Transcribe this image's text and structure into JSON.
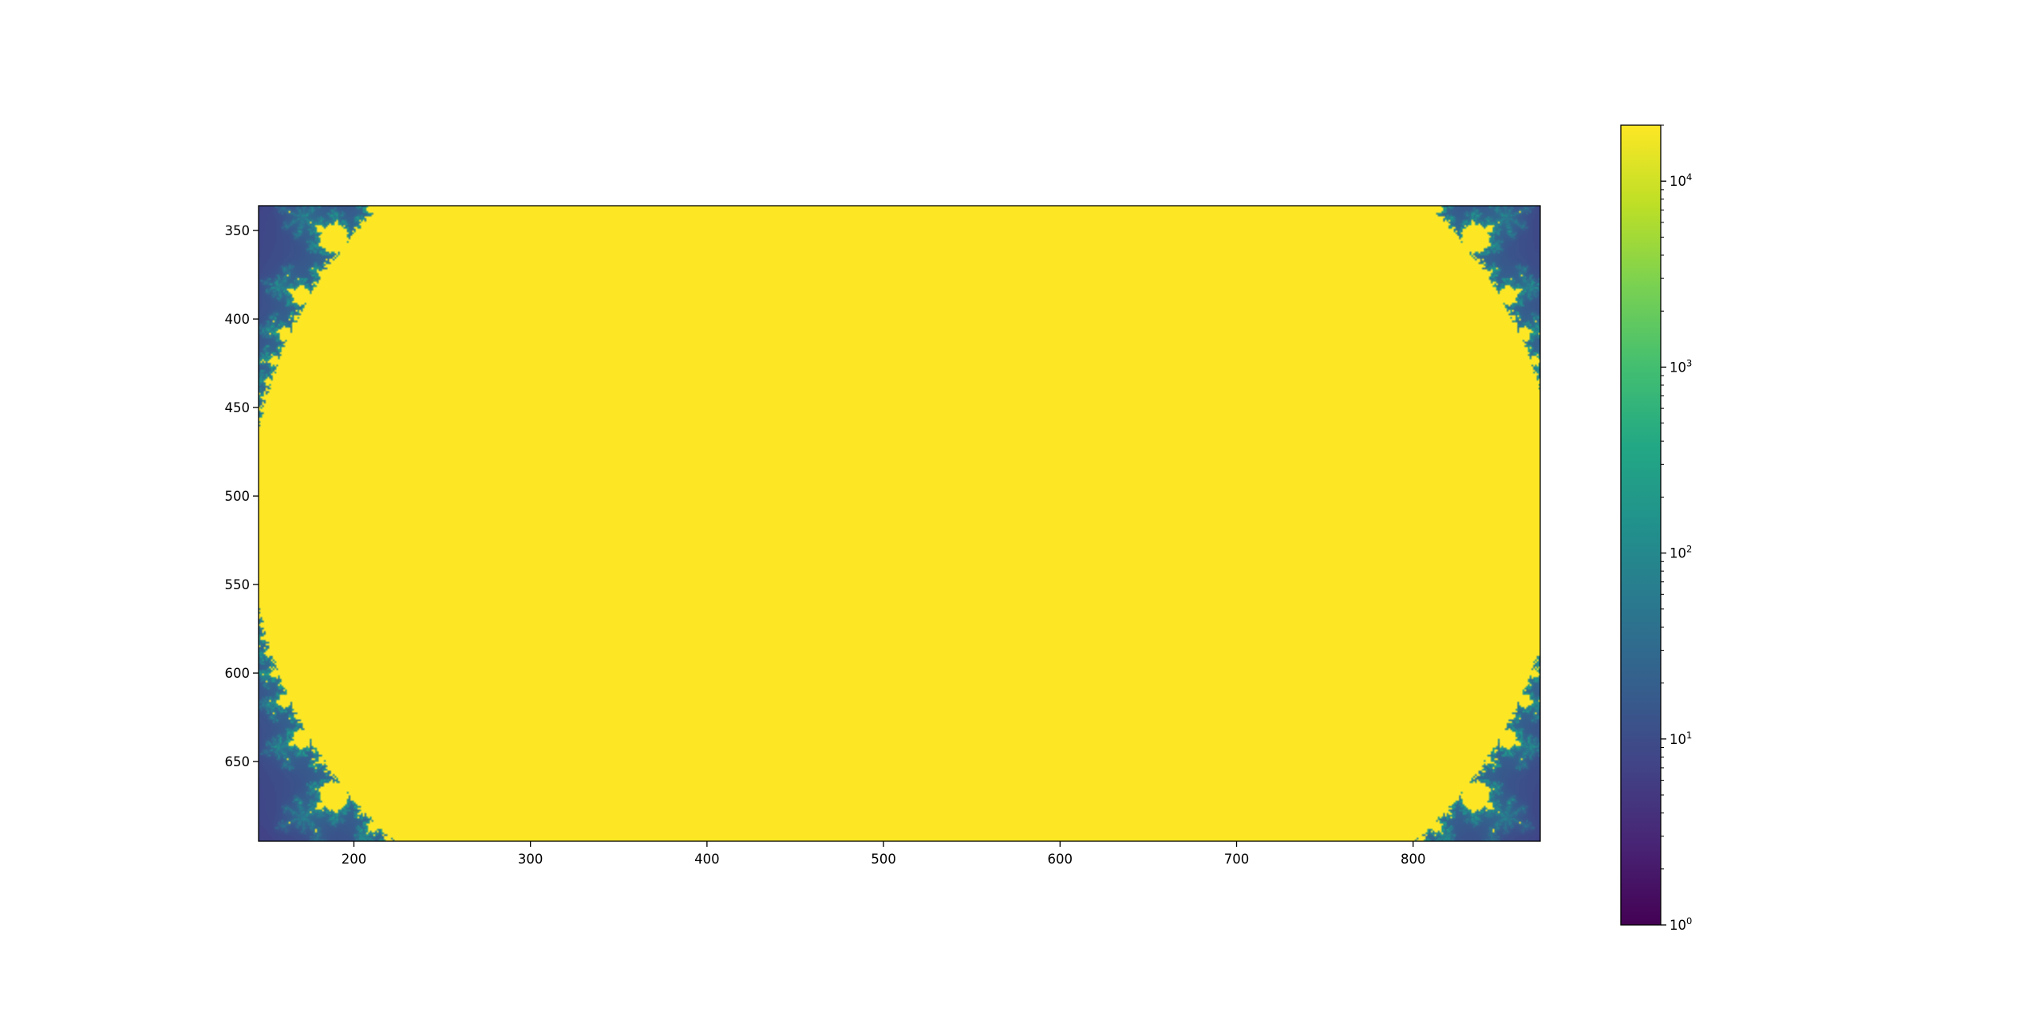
{
  "chart_data": {
    "type": "heatmap",
    "title": "",
    "xlabel": "",
    "ylabel": "",
    "xlim": [
      146,
      872
    ],
    "ylim": [
      695,
      336
    ],
    "x_ticks": [
      {
        "value": 200,
        "label": "200"
      },
      {
        "value": 300,
        "label": "300"
      },
      {
        "value": 400,
        "label": "400"
      },
      {
        "value": 500,
        "label": "500"
      },
      {
        "value": 600,
        "label": "600"
      },
      {
        "value": 700,
        "label": "700"
      },
      {
        "value": 800,
        "label": "800"
      }
    ],
    "y_ticks": [
      {
        "value": 350,
        "label": "350"
      },
      {
        "value": 400,
        "label": "400"
      },
      {
        "value": 450,
        "label": "450"
      },
      {
        "value": 500,
        "label": "500"
      },
      {
        "value": 550,
        "label": "550"
      },
      {
        "value": 600,
        "label": "600"
      },
      {
        "value": 650,
        "label": "650"
      }
    ],
    "colormap": "viridis",
    "colorbar": {
      "scale": "log",
      "range": [
        1,
        20000
      ],
      "ticks": [
        {
          "value": 1,
          "mantissa": "10",
          "exponent": "0"
        },
        {
          "value": 10,
          "mantissa": "10",
          "exponent": "1"
        },
        {
          "value": 100,
          "mantissa": "10",
          "exponent": "2"
        },
        {
          "value": 1000,
          "mantissa": "10",
          "exponent": "3"
        },
        {
          "value": 10000,
          "mantissa": "10",
          "exponent": "4"
        }
      ]
    },
    "image": {
      "description": "Mandelbrot set, mirrored horizontally and centered at x=512, y=512; set interior shown at the colorbar maximum (yellow), escape-time background in purples/blues",
      "center": [
        512,
        512
      ],
      "scale_units_per_pixel": 0.0027,
      "max_value": 20000
    },
    "grid": false,
    "legend": "none"
  }
}
